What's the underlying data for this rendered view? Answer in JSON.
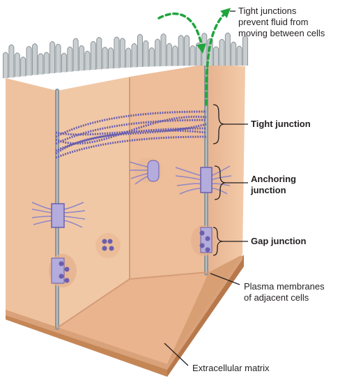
{
  "labels": {
    "fluid_note": "Tight junctions\nprevent fluid from\nmoving between cells",
    "tight_junction": "Tight junction",
    "anchoring_junction": "Anchoring\njunction",
    "gap_junction": "Gap junction",
    "plasma_membranes": "Plasma membranes\nof adjacent cells",
    "extracellular_matrix": "Extracellular matrix"
  },
  "colors": {
    "cell_body": "#f2c7a5",
    "cell_shadow": "#d9a98a",
    "membrane": "#8b9396",
    "microvilli": "#c9ced1",
    "junction_protein": "#7266b0",
    "matrix": "#d9a277",
    "fluid_arrow": "#1fa53c",
    "leader_line": "#231f20"
  },
  "icons": {
    "fluid_arrow": "dashed-curved-arrow",
    "bracket": "curly-brace"
  }
}
